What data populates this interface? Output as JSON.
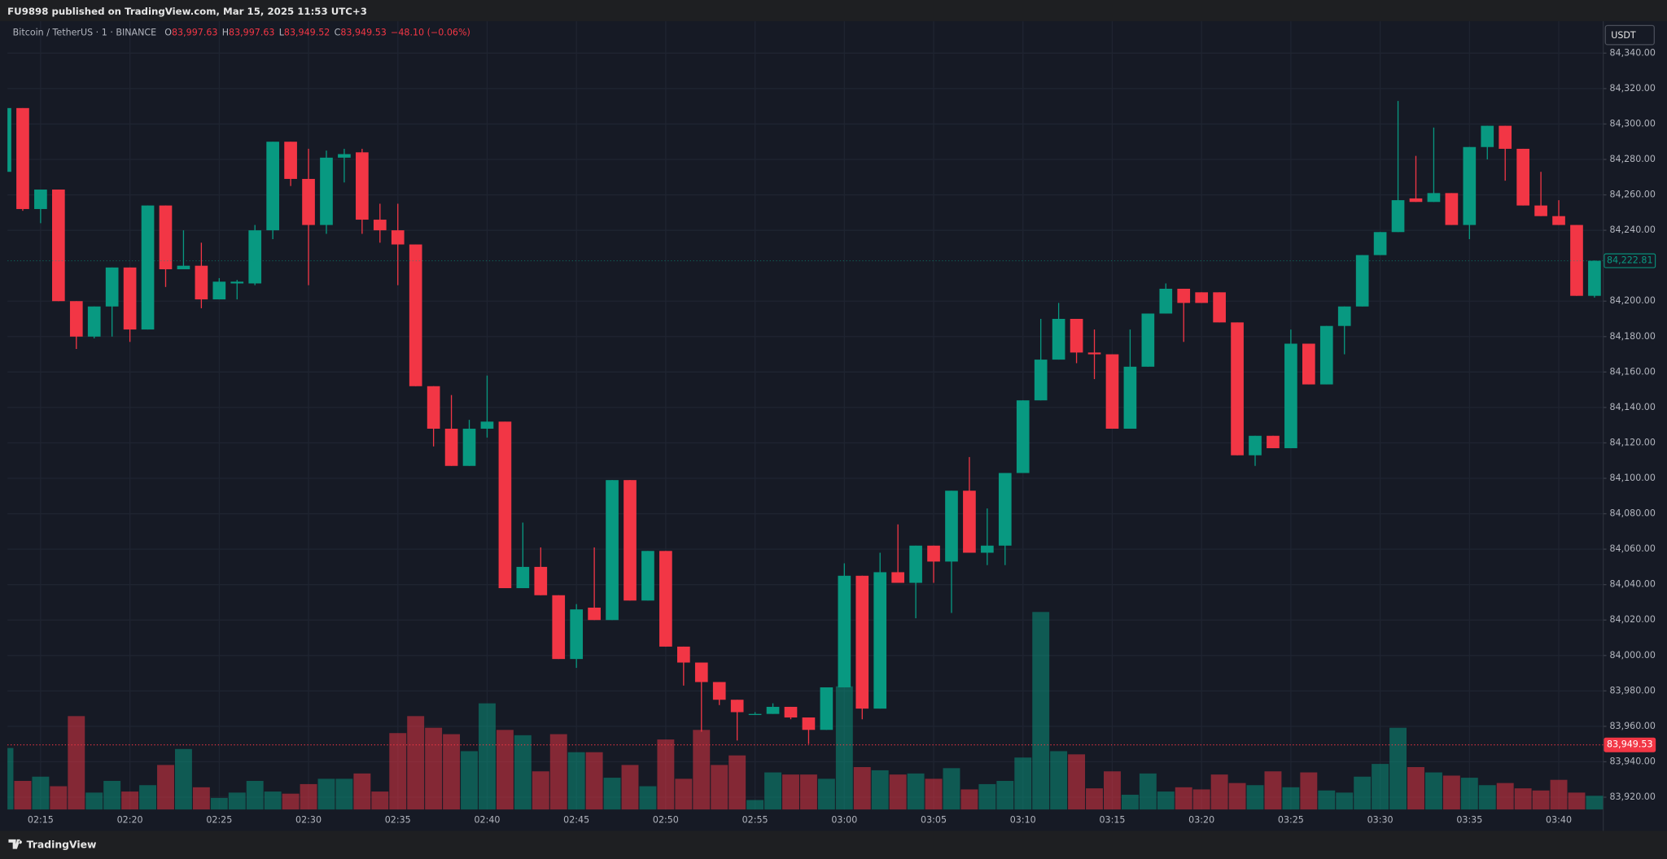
{
  "chart_data": {
    "type": "candlestick",
    "header": "FU9898 published on TradingView.com, Mar 15, 2025 11:53 UTC+3",
    "legend": {
      "symbol": "Bitcoin / TetherUS · 1 · BINANCE",
      "ohlc": [
        {
          "label": "O",
          "value": "83,997.63"
        },
        {
          "label": "H",
          "value": "83,997.63"
        },
        {
          "label": "L",
          "value": "83,949.52"
        },
        {
          "label": "C",
          "value": "83,949.53"
        }
      ],
      "change": "−48.10 (−0.06%)"
    },
    "currency": "USDT",
    "brand": "TradingView",
    "up_color": "#089981",
    "down_color": "#f23645",
    "grid": true,
    "categories": [
      "02:13",
      "02:14",
      "02:15",
      "02:16",
      "02:17",
      "02:18",
      "02:19",
      "02:20",
      "02:21",
      "02:22",
      "02:23",
      "02:24",
      "02:25",
      "02:26",
      "02:27",
      "02:28",
      "02:29",
      "02:30",
      "02:31",
      "02:32",
      "02:33",
      "02:34",
      "02:35",
      "02:36",
      "02:37",
      "02:38",
      "02:39",
      "02:40",
      "02:41",
      "02:42",
      "02:43",
      "02:44",
      "02:45",
      "02:46",
      "02:47",
      "02:48",
      "02:49",
      "02:50",
      "02:51",
      "02:52",
      "02:53",
      "02:54",
      "02:55",
      "02:56",
      "02:57",
      "02:58",
      "02:59",
      "03:00",
      "03:01",
      "03:02",
      "03:03",
      "03:04",
      "03:05",
      "03:06",
      "03:07",
      "03:08",
      "03:09",
      "03:10",
      "03:11",
      "03:12",
      "03:13",
      "03:14",
      "03:15",
      "03:16",
      "03:17",
      "03:18",
      "03:19",
      "03:20",
      "03:21",
      "03:22",
      "03:23",
      "03:24",
      "03:25",
      "03:26",
      "03:27",
      "03:28",
      "03:29",
      "03:30",
      "03:31",
      "03:32",
      "03:33",
      "03:34",
      "03:35",
      "03:36",
      "03:37",
      "03:38",
      "03:39",
      "03:40",
      "03:41",
      "03:42"
    ],
    "open": [
      84273,
      84309,
      84252,
      84263,
      84200,
      84180,
      84197,
      84219,
      84184,
      84254,
      84218,
      84220,
      84201,
      84210,
      84210,
      84240,
      84290,
      84269,
      84243,
      84281,
      84284,
      84246,
      84240,
      84232,
      84152,
      84128,
      84107,
      84128,
      84132,
      84038,
      84050,
      84034,
      83998,
      84027,
      84020,
      84099,
      84031,
      84059,
      84005,
      83996,
      83985,
      83975,
      83967,
      83967,
      83971,
      83965,
      83958,
      83982,
      84045,
      83970,
      84047,
      84041,
      84062,
      84053,
      84093,
      84058,
      84062,
      84103,
      84144,
      84167,
      84190,
      84171,
      84170,
      84128,
      84163,
      84193,
      84207,
      84205,
      84205,
      84188,
      84113,
      84124,
      84117,
      84176,
      84153,
      84186,
      84197,
      84226,
      84239,
      84258,
      84256,
      84261,
      84243,
      84287,
      84299,
      84286,
      84254,
      84248,
      84243,
      84203
    ],
    "high": [
      84309,
      84309,
      84263,
      84263,
      84200,
      84197,
      84219,
      84219,
      84254,
      84254,
      84240,
      84233,
      84213,
      84212,
      84243,
      84290,
      84290,
      84286,
      84285,
      84286,
      84286,
      84255,
      84255,
      84232,
      84152,
      84147,
      84133,
      84158,
      84132,
      84075,
      84061,
      84034,
      84029,
      84061,
      84099,
      84099,
      84059,
      84059,
      84005,
      83996,
      83985,
      83975,
      83968,
      83973,
      83971,
      83965,
      83982,
      84052,
      84045,
      84058,
      84074,
      84062,
      84062,
      84093,
      84112,
      84083,
      84103,
      84144,
      84190,
      84199,
      84190,
      84184,
      84170,
      84184,
      84193,
      84210,
      84207,
      84205,
      84205,
      84188,
      84124,
      84124,
      84184,
      84176,
      84186,
      84197,
      84226,
      84239,
      84313,
      84282,
      84298,
      84261,
      84287,
      84299,
      84299,
      84286,
      84273,
      84257,
      84243,
      84223
    ],
    "low": [
      84271,
      84251,
      84244,
      84200,
      84173,
      84179,
      84180,
      84177,
      84184,
      84208,
      84218,
      84196,
      84201,
      84201,
      84209,
      84235,
      84265,
      84209,
      84238,
      84267,
      84238,
      84233,
      84209,
      84152,
      84118,
      84107,
      84107,
      84123,
      84038,
      84038,
      84034,
      83998,
      83993,
      84020,
      84020,
      84031,
      84031,
      84005,
      83983,
      83957,
      83972,
      83952,
      83967,
      83967,
      83964,
      83950,
      83958,
      83982,
      83964,
      83970,
      84041,
      84021,
      84041,
      84024,
      84058,
      84051,
      84051,
      84103,
      84144,
      84167,
      84165,
      84156,
      84128,
      84128,
      84163,
      84193,
      84177,
      84199,
      84188,
      84113,
      84107,
      84117,
      84117,
      84153,
      84153,
      84170,
      84197,
      84226,
      84239,
      84256,
      84256,
      84243,
      84235,
      84280,
      84268,
      84254,
      84248,
      84243,
      84203,
      84202
    ],
    "close": [
      84309,
      84252,
      84263,
      84200,
      84180,
      84197,
      84219,
      84184,
      84254,
      84218,
      84220,
      84201,
      84211,
      84211,
      84240,
      84290,
      84269,
      84243,
      84281,
      84283,
      84246,
      84240,
      84232,
      84152,
      84128,
      84107,
      84128,
      84132,
      84038,
      84050,
      84034,
      83998,
      84026,
      84020,
      84099,
      84031,
      84059,
      84005,
      83996,
      83985,
      83975,
      83968,
      83967,
      83971,
      83965,
      83958,
      83982,
      84045,
      83970,
      84047,
      84041,
      84062,
      84053,
      84093,
      84058,
      84062,
      84103,
      84144,
      84167,
      84190,
      84171,
      84170,
      84128,
      84163,
      84193,
      84207,
      84199,
      84199,
      84188,
      84113,
      84124,
      84117,
      84176,
      84153,
      84186,
      84197,
      84226,
      84239,
      84257,
      84256,
      84261,
      84243,
      84287,
      84299,
      84286,
      84254,
      84248,
      84243,
      84203,
      84222.81
    ],
    "volume": [
      58,
      27,
      31,
      22,
      88,
      16,
      27,
      17,
      23,
      42,
      57,
      21,
      11,
      16,
      27,
      17,
      15,
      24,
      29,
      29,
      34,
      17,
      72,
      88,
      77,
      71,
      55,
      100,
      75,
      70,
      36,
      71,
      54,
      54,
      30,
      42,
      22,
      66,
      29,
      75,
      42,
      51,
      9,
      35,
      33,
      33,
      29,
      116,
      40,
      37,
      33,
      34,
      29,
      39,
      19,
      24,
      27,
      49,
      186,
      55,
      52,
      20,
      36,
      14,
      34,
      17,
      21,
      19,
      33,
      25,
      23,
      36,
      21,
      35,
      18,
      16,
      31,
      43,
      77,
      40,
      35,
      32,
      30,
      23,
      25,
      20,
      18,
      28,
      16,
      13
    ],
    "ylim": [
      83913,
      84358
    ],
    "yticks": [
      {
        "value": 84340,
        "label": "84,340.00"
      },
      {
        "value": 84320,
        "label": "84,320.00"
      },
      {
        "value": 84300,
        "label": "84,300.00"
      },
      {
        "value": 84280,
        "label": "84,280.00"
      },
      {
        "value": 84260,
        "label": "84,260.00"
      },
      {
        "value": 84240,
        "label": "84,240.00"
      },
      {
        "value": 84200,
        "label": "84,200.00"
      },
      {
        "value": 84180,
        "label": "84,180.00"
      },
      {
        "value": 84160,
        "label": "84,160.00"
      },
      {
        "value": 84140,
        "label": "84,140.00"
      },
      {
        "value": 84120,
        "label": "84,120.00"
      },
      {
        "value": 84100,
        "label": "84,100.00"
      },
      {
        "value": 84080,
        "label": "84,080.00"
      },
      {
        "value": 84060,
        "label": "84,060.00"
      },
      {
        "value": 84040,
        "label": "84,040.00"
      },
      {
        "value": 84020,
        "label": "84,020.00"
      },
      {
        "value": 84000,
        "label": "84,000.00"
      },
      {
        "value": 83980,
        "label": "83,980.00"
      },
      {
        "value": 83960,
        "label": "83,960.00"
      },
      {
        "value": 83940,
        "label": "83,940.00"
      },
      {
        "value": 83920,
        "label": "83,920.00"
      }
    ],
    "xticks": [
      "02:15",
      "02:20",
      "02:25",
      "02:30",
      "02:35",
      "02:40",
      "02:45",
      "02:50",
      "02:55",
      "03:00",
      "03:05",
      "03:10",
      "03:15",
      "03:20",
      "03:25",
      "03:30",
      "03:35",
      "03:40"
    ],
    "price_lines": [
      {
        "value": 84222.81,
        "label": "84,222.81",
        "color": "#089981",
        "style": "outline"
      },
      {
        "value": 83949.53,
        "label": "83,949.53",
        "color": "#f23645",
        "style": "filled"
      }
    ]
  }
}
